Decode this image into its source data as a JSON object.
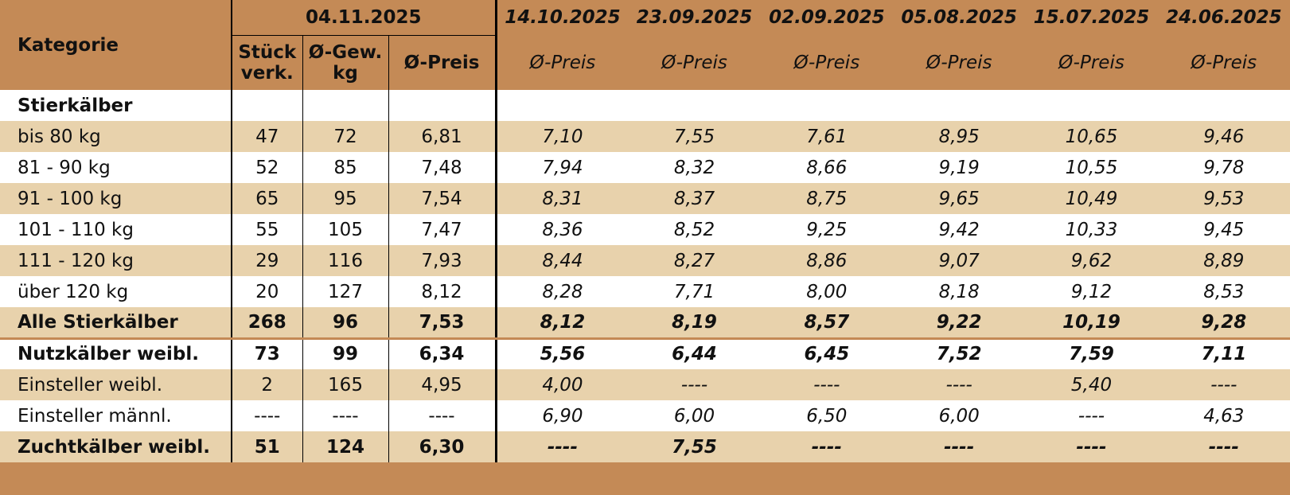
{
  "header": {
    "category": "Kategorie",
    "current": {
      "date": "04.11.2025",
      "columns": [
        "Stück\nverk.",
        "Ø-Gew.\nkg",
        "Ø-Preis"
      ]
    },
    "history": [
      {
        "date": "14.10.2025",
        "label": "Ø-Preis"
      },
      {
        "date": "23.09.2025",
        "label": "Ø-Preis"
      },
      {
        "date": "02.09.2025",
        "label": "Ø-Preis"
      },
      {
        "date": "05.08.2025",
        "label": "Ø-Preis"
      },
      {
        "date": "15.07.2025",
        "label": "Ø-Preis"
      },
      {
        "date": "24.06.2025",
        "label": "Ø-Preis"
      }
    ]
  },
  "rows": [
    {
      "label": "Stierkälber",
      "style": "section"
    },
    {
      "label": "bis 80 kg",
      "style": "normal",
      "values": [
        "47",
        "72",
        "6,81",
        "7,10",
        "7,55",
        "7,61",
        "8,95",
        "10,65",
        "9,46"
      ]
    },
    {
      "label": "81 - 90 kg",
      "style": "normal",
      "values": [
        "52",
        "85",
        "7,48",
        "7,94",
        "8,32",
        "8,66",
        "9,19",
        "10,55",
        "9,78"
      ]
    },
    {
      "label": "91 - 100 kg",
      "style": "normal",
      "values": [
        "65",
        "95",
        "7,54",
        "8,31",
        "8,37",
        "8,75",
        "9,65",
        "10,49",
        "9,53"
      ]
    },
    {
      "label": "101 - 110 kg",
      "style": "normal",
      "values": [
        "55",
        "105",
        "7,47",
        "8,36",
        "8,52",
        "9,25",
        "9,42",
        "10,33",
        "9,45"
      ]
    },
    {
      "label": "111 - 120 kg",
      "style": "normal",
      "values": [
        "29",
        "116",
        "7,93",
        "8,44",
        "8,27",
        "8,86",
        "9,07",
        "9,62",
        "8,89"
      ]
    },
    {
      "label": "über 120 kg",
      "style": "normal",
      "values": [
        "20",
        "127",
        "8,12",
        "8,28",
        "7,71",
        "8,00",
        "8,18",
        "9,12",
        "8,53"
      ]
    },
    {
      "label": "Alle Stierkälber",
      "style": "total",
      "values": [
        "268",
        "96",
        "7,53",
        "8,12",
        "8,19",
        "8,57",
        "9,22",
        "10,19",
        "9,28"
      ]
    },
    {
      "label": "Nutzkälber weibl.",
      "style": "bold",
      "values": [
        "73",
        "99",
        "6,34",
        "5,56",
        "6,44",
        "6,45",
        "7,52",
        "7,59",
        "7,11"
      ]
    },
    {
      "label": "Einsteller weibl.",
      "style": "normal",
      "values": [
        "2",
        "165",
        "4,95",
        "4,00",
        "----",
        "----",
        "----",
        "5,40",
        "----"
      ]
    },
    {
      "label": "Einsteller männl.",
      "style": "normal",
      "values": [
        "----",
        "----",
        "----",
        "6,90",
        "6,00",
        "6,50",
        "6,00",
        "----",
        "4,63"
      ]
    },
    {
      "label": "Zuchtkälber weibl.",
      "style": "bold",
      "values": [
        "51",
        "124",
        "6,30",
        "----",
        "7,55",
        "----",
        "----",
        "----",
        "----"
      ]
    }
  ]
}
